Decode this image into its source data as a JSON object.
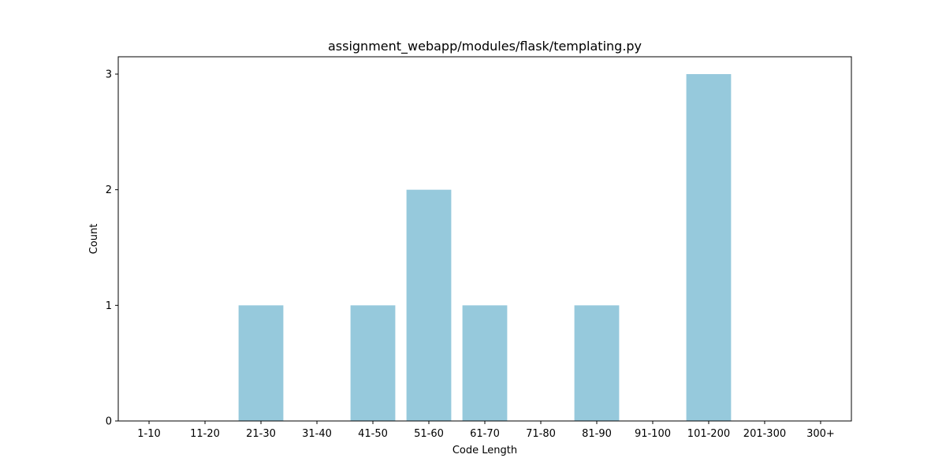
{
  "chart_data": {
    "type": "bar",
    "title": "assignment_webapp/modules/flask/templating.py",
    "xlabel": "Code Length",
    "ylabel": "Count",
    "categories": [
      "1-10",
      "11-20",
      "21-30",
      "31-40",
      "41-50",
      "51-60",
      "61-70",
      "71-80",
      "81-90",
      "91-100",
      "101-200",
      "201-300",
      "300+"
    ],
    "values": [
      0,
      0,
      1,
      0,
      1,
      2,
      1,
      0,
      1,
      0,
      3,
      0,
      0
    ],
    "ylim": [
      0,
      3.15
    ],
    "yticks": [
      0,
      1,
      2,
      3
    ],
    "bar_color": "#96c9dc",
    "grid": false,
    "legend": "none"
  }
}
